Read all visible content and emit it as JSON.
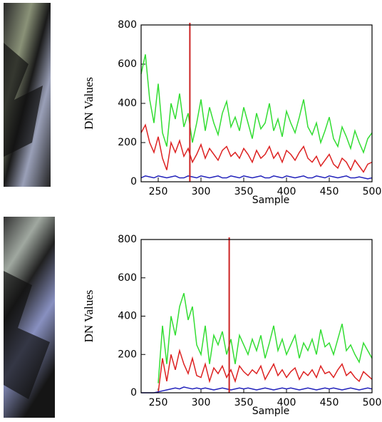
{
  "chart_data": [
    {
      "type": "line",
      "ylabel": "DN Values",
      "xlabel": "Sample",
      "x": [
        230,
        235,
        240,
        245,
        250,
        255,
        260,
        265,
        270,
        275,
        280,
        285,
        290,
        295,
        300,
        305,
        310,
        315,
        320,
        325,
        330,
        335,
        340,
        345,
        350,
        355,
        360,
        365,
        370,
        375,
        380,
        385,
        390,
        395,
        400,
        405,
        410,
        415,
        420,
        425,
        430,
        435,
        440,
        445,
        450,
        455,
        460,
        465,
        470,
        475,
        480,
        485,
        490,
        495,
        500
      ],
      "series": [
        {
          "color": "#33dd33",
          "values": [
            550,
            650,
            420,
            300,
            500,
            250,
            180,
            400,
            320,
            450,
            280,
            350,
            200,
            300,
            420,
            260,
            380,
            300,
            240,
            350,
            410,
            280,
            330,
            260,
            380,
            300,
            220,
            350,
            270,
            300,
            400,
            260,
            320,
            230,
            360,
            300,
            250,
            330,
            420,
            280,
            240,
            300,
            200,
            260,
            330,
            220,
            180,
            280,
            230,
            170,
            260,
            200,
            150,
            220,
            250
          ]
        },
        {
          "color": "#dd2222",
          "values": [
            250,
            290,
            200,
            150,
            230,
            120,
            60,
            200,
            150,
            210,
            130,
            170,
            100,
            140,
            190,
            120,
            170,
            140,
            110,
            160,
            180,
            130,
            150,
            120,
            170,
            140,
            100,
            160,
            120,
            140,
            180,
            120,
            150,
            100,
            160,
            140,
            110,
            150,
            180,
            120,
            100,
            130,
            80,
            110,
            140,
            90,
            70,
            120,
            100,
            60,
            110,
            80,
            50,
            90,
            100
          ]
        },
        {
          "color": "#2222bb",
          "values": [
            20,
            30,
            25,
            20,
            30,
            25,
            20,
            25,
            30,
            20,
            20,
            30,
            25,
            20,
            30,
            25,
            20,
            25,
            30,
            20,
            20,
            30,
            25,
            20,
            30,
            25,
            20,
            25,
            30,
            20,
            20,
            30,
            25,
            20,
            30,
            25,
            20,
            25,
            30,
            20,
            20,
            30,
            25,
            20,
            30,
            25,
            20,
            25,
            30,
            20,
            20,
            25,
            20,
            15,
            20
          ]
        }
      ],
      "cursor_x": 287,
      "cursor_color": "#cc2222",
      "xlim": [
        230,
        500
      ],
      "xticks": [
        250,
        300,
        350,
        400,
        450,
        500
      ],
      "ylim": [
        0,
        800
      ],
      "yticks": [
        0,
        200,
        400,
        600,
        800
      ]
    },
    {
      "type": "line",
      "ylabel": "DN Values",
      "xlabel": "Sample",
      "x": [
        230,
        235,
        240,
        245,
        250,
        255,
        260,
        265,
        270,
        275,
        280,
        285,
        290,
        295,
        300,
        305,
        310,
        315,
        320,
        325,
        330,
        335,
        340,
        345,
        350,
        355,
        360,
        365,
        370,
        375,
        380,
        385,
        390,
        395,
        400,
        405,
        410,
        415,
        420,
        425,
        430,
        435,
        440,
        445,
        450,
        455,
        460,
        465,
        470,
        475,
        480,
        485,
        490,
        495,
        500
      ],
      "series": [
        {
          "color": "#33dd33",
          "values": [
            null,
            null,
            null,
            null,
            50,
            350,
            150,
            400,
            300,
            450,
            520,
            380,
            450,
            250,
            200,
            350,
            150,
            300,
            250,
            320,
            200,
            280,
            150,
            300,
            250,
            200,
            280,
            220,
            300,
            180,
            260,
            350,
            220,
            280,
            200,
            250,
            300,
            180,
            260,
            220,
            280,
            200,
            330,
            240,
            260,
            200,
            280,
            360,
            220,
            250,
            200,
            160,
            260,
            220,
            180
          ]
        },
        {
          "color": "#dd2222",
          "values": [
            null,
            null,
            null,
            null,
            0,
            180,
            60,
            200,
            120,
            220,
            150,
            100,
            180,
            90,
            80,
            150,
            60,
            130,
            100,
            140,
            80,
            120,
            60,
            140,
            110,
            90,
            120,
            100,
            140,
            70,
            110,
            150,
            90,
            120,
            80,
            110,
            130,
            70,
            110,
            90,
            120,
            80,
            140,
            100,
            110,
            80,
            120,
            150,
            90,
            110,
            80,
            60,
            110,
            90,
            70
          ]
        },
        {
          "color": "#2222bb",
          "values": [
            0,
            0,
            0,
            0,
            5,
            10,
            15,
            20,
            25,
            20,
            30,
            25,
            20,
            25,
            20,
            25,
            20,
            15,
            20,
            25,
            20,
            15,
            20,
            25,
            20,
            25,
            20,
            15,
            20,
            25,
            20,
            15,
            20,
            25,
            20,
            25,
            20,
            15,
            20,
            25,
            20,
            15,
            20,
            25,
            20,
            25,
            20,
            15,
            20,
            25,
            20,
            15,
            20,
            25,
            20
          ]
        }
      ],
      "cursor_x": 333,
      "cursor_color": "#cc2222",
      "xlim": [
        230,
        500
      ],
      "xticks": [
        250,
        300,
        350,
        400,
        450,
        500
      ],
      "ylim": [
        0,
        800
      ],
      "yticks": [
        0,
        200,
        400,
        600,
        800
      ]
    }
  ]
}
